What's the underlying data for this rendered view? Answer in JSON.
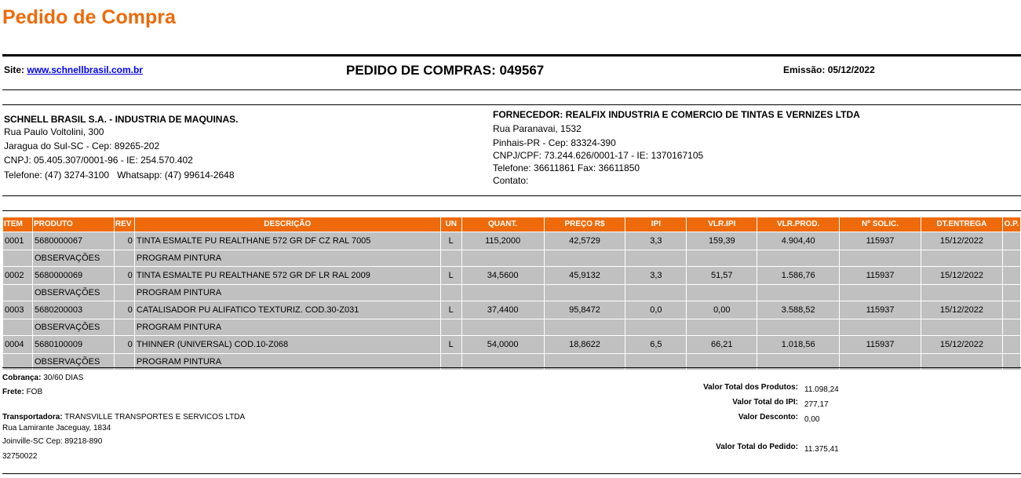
{
  "page_title": "Pedido de Compra",
  "header": {
    "site_label": "Site:",
    "site_link": "www.schnellbrasil.com.br",
    "order_title": "PEDIDO DE COMPRAS: 049567",
    "emission": "Emissão: 05/12/2022"
  },
  "buyer": {
    "name": "SCHNELL BRASIL S.A. - INDUSTRIA DE MAQUINAS.",
    "address": "Rua Paulo Voltolini, 300",
    "city": "Jaragua do Sul-SC - Cep: 89265-202",
    "cnpj": "CNPJ: 05.405.307/0001-96 - IE: 254.570.402",
    "phone": "Telefone: (47) 3274-3100   Whatsapp: (47) 99614-2648"
  },
  "supplier": {
    "name": "FORNECEDOR: REALFIX INDUSTRIA E COMERCIO DE TINTAS E VERNIZES LTDA",
    "address": "Rua Paranavai, 1532",
    "city": "Pinhais-PR - Cep: 83324-390",
    "cnpj": "CNPJ/CPF: 73.244.626/0001-17 - IE: 1370167105",
    "phone": "Telefone: 36611861 Fax: 36611850",
    "contact": "Contato:"
  },
  "table": {
    "headers": [
      "ITEM",
      "PRODUTO",
      "REV",
      "DESCRIÇÃO",
      "UN",
      "QUANT.",
      "PREÇO R$",
      "IPI",
      "VLR.IPI",
      "VLR.PROD.",
      "Nº SOLIC.",
      "DT.ENTREGA",
      "O.P."
    ],
    "obs_label": "OBSERVAÇÕES",
    "rows": [
      {
        "item": "0001",
        "produto": "5680000067",
        "rev": "0",
        "descricao": "TINTA ESMALTE PU REALTHANE 572 GR DF CZ RAL 7005",
        "un": "L",
        "quant": "115,2000",
        "preco": "42,5729",
        "ipi": "3,3",
        "vlr_ipi": "159,39",
        "vlr_prod": "4.904,40",
        "solic": "115937",
        "entrega": "15/12/2022",
        "op": "",
        "obs": "PROGRAM PINTURA"
      },
      {
        "item": "0002",
        "produto": "5680000069",
        "rev": "0",
        "descricao": "TINTA ESMALTE PU REALTHANE 572 GR DF LR RAL 2009",
        "un": "L",
        "quant": "34,5600",
        "preco": "45,9132",
        "ipi": "3,3",
        "vlr_ipi": "51,57",
        "vlr_prod": "1.586,76",
        "solic": "115937",
        "entrega": "15/12/2022",
        "op": "",
        "obs": "PROGRAM PINTURA"
      },
      {
        "item": "0003",
        "produto": "5680200003",
        "rev": "0",
        "descricao": "CATALISADOR PU ALIFATICO TEXTURIZ. COD.30-Z031",
        "un": "L",
        "quant": "37,4400",
        "preco": "95,8472",
        "ipi": "0,0",
        "vlr_ipi": "0,00",
        "vlr_prod": "3.588,52",
        "solic": "115937",
        "entrega": "15/12/2022",
        "op": "",
        "obs": "PROGRAM PINTURA"
      },
      {
        "item": "0004",
        "produto": "5680100009",
        "rev": "0",
        "descricao": "THINNER (UNIVERSAL) COD.10-Z068",
        "un": "L",
        "quant": "54,0000",
        "preco": "18,8622",
        "ipi": "6,5",
        "vlr_ipi": "66,21",
        "vlr_prod": "1.018,56",
        "solic": "115937",
        "entrega": "15/12/2022",
        "op": "",
        "obs": "PROGRAM PINTURA"
      }
    ]
  },
  "footer": {
    "cobranca_label": "Cobrança:",
    "cobranca": "30/60 DIAS",
    "frete_label": "Frete:",
    "frete": "FOB",
    "transp_label": "Transportadora:",
    "transp": "TRANSVILLE TRANSPORTES E SERVICOS LTDA",
    "transp_address": "Rua Lamirante Jaceguay, 1834",
    "transp_city": "Joinville-SC Cep: 89218-890",
    "transp_phone": "32750022",
    "totals": [
      {
        "label": "Valor Total dos Produtos:",
        "value": "11.098,24"
      },
      {
        "label": "Valor Total do IPI:",
        "value": "277,17"
      },
      {
        "label": "Valor Desconto:",
        "value": "0,00"
      },
      {
        "label": "Valor Total do Pedido:",
        "value": "11.375,41"
      }
    ]
  },
  "colors": {
    "accent": "#ee6a0a",
    "row_bg": "#c0c0c0"
  }
}
